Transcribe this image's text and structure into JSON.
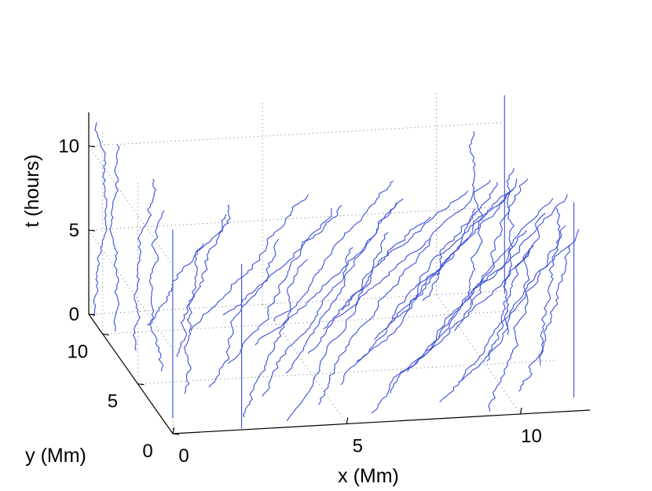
{
  "chart_data": {
    "type": "line3d",
    "title": "",
    "xlabel": "x (Mm)",
    "ylabel": "y (Mm)",
    "zlabel": "t (hours)",
    "xlim": [
      0,
      12
    ],
    "ylim": [
      0,
      12
    ],
    "zlim": [
      0,
      12
    ],
    "x_ticks": [
      "0",
      "5",
      "10"
    ],
    "y_ticks": [
      "0",
      "5",
      "10"
    ],
    "z_ticks": [
      "0",
      "5",
      "10"
    ],
    "grid": true,
    "line_color": "#3b4fd8",
    "description_note": "",
    "series": [
      {
        "start": [
          0.1,
          11.8
        ],
        "drift": [
          0.0,
          -0.01
        ],
        "length": 11.4
      },
      {
        "start": [
          0.4,
          10.2
        ],
        "drift": [
          0.01,
          -0.02
        ],
        "length": 11.1
      },
      {
        "start": [
          0.6,
          8.2
        ],
        "drift": [
          0.02,
          -0.03
        ],
        "length": 10.3
      },
      {
        "start": [
          0.9,
          6.1
        ],
        "drift": [
          0.0,
          -0.04
        ],
        "length": 10.0
      },
      {
        "start": [
          1.1,
          3.8
        ],
        "drift": [
          0.02,
          -0.05
        ],
        "length": 9.2
      },
      {
        "start": [
          0.3,
          1.5
        ],
        "drift": [
          0.0,
          0.0
        ],
        "length": 11.2
      },
      {
        "start": [
          1.4,
          10.6
        ],
        "drift": [
          0.1,
          -0.45
        ],
        "length": 9.6
      },
      {
        "start": [
          1.6,
          7.4
        ],
        "drift": [
          0.12,
          -0.3
        ],
        "length": 10.5
      },
      {
        "start": [
          1.9,
          4.3
        ],
        "drift": [
          0.15,
          -0.22
        ],
        "length": 9.8
      },
      {
        "start": [
          2.3,
          1.2
        ],
        "drift": [
          0.2,
          -0.05
        ],
        "length": 9.4
      },
      {
        "start": [
          2.5,
          9.8
        ],
        "drift": [
          0.25,
          -0.35
        ],
        "length": 10.1
      },
      {
        "start": [
          2.9,
          6.5
        ],
        "drift": [
          0.22,
          -0.28
        ],
        "length": 10.8
      },
      {
        "start": [
          3.2,
          3.1
        ],
        "drift": [
          0.18,
          -0.12
        ],
        "length": 9.5
      },
      {
        "start": [
          3.4,
          0.6
        ],
        "drift": [
          0.3,
          0.1
        ],
        "length": 10.4
      },
      {
        "start": [
          3.7,
          11.2
        ],
        "drift": [
          0.28,
          -0.5
        ],
        "length": 9.0
      },
      {
        "start": [
          4.0,
          8.1
        ],
        "drift": [
          0.32,
          -0.38
        ],
        "length": 10.7
      },
      {
        "start": [
          4.3,
          5.2
        ],
        "drift": [
          0.25,
          -0.2
        ],
        "length": 11.0
      },
      {
        "start": [
          4.6,
          2.0
        ],
        "drift": [
          0.35,
          -0.08
        ],
        "length": 9.9
      },
      {
        "start": [
          5.0,
          10.3
        ],
        "drift": [
          0.3,
          -0.42
        ],
        "length": 10.2
      },
      {
        "start": [
          5.3,
          7.0
        ],
        "drift": [
          0.27,
          -0.33
        ],
        "length": 9.7
      },
      {
        "start": [
          5.6,
          3.8
        ],
        "drift": [
          0.33,
          -0.18
        ],
        "length": 10.9
      },
      {
        "start": [
          5.9,
          0.9
        ],
        "drift": [
          0.4,
          0.05
        ],
        "length": 9.3
      },
      {
        "start": [
          6.2,
          9.3
        ],
        "drift": [
          0.36,
          -0.4
        ],
        "length": 10.6
      },
      {
        "start": [
          6.5,
          6.0
        ],
        "drift": [
          0.3,
          -0.25
        ],
        "length": 11.2
      },
      {
        "start": [
          6.8,
          2.7
        ],
        "drift": [
          0.38,
          -0.12
        ],
        "length": 10.0
      },
      {
        "start": [
          7.1,
          11.0
        ],
        "drift": [
          0.28,
          -0.48
        ],
        "length": 9.4
      },
      {
        "start": [
          7.4,
          8.0
        ],
        "drift": [
          0.34,
          -0.36
        ],
        "length": 10.8
      },
      {
        "start": [
          7.7,
          4.7
        ],
        "drift": [
          0.4,
          -0.22
        ],
        "length": 11.1
      },
      {
        "start": [
          8.0,
          1.6
        ],
        "drift": [
          0.42,
          -0.02
        ],
        "length": 9.8
      },
      {
        "start": [
          8.3,
          9.9
        ],
        "drift": [
          0.26,
          -0.4
        ],
        "length": 10.4
      },
      {
        "start": [
          8.6,
          6.6
        ],
        "drift": [
          0.3,
          -0.3
        ],
        "length": 10.9
      },
      {
        "start": [
          8.9,
          3.4
        ],
        "drift": [
          0.32,
          -0.15
        ],
        "length": 9.6
      },
      {
        "start": [
          9.2,
          0.4
        ],
        "drift": [
          0.2,
          0.08
        ],
        "length": 9.0
      },
      {
        "start": [
          9.5,
          11.5
        ],
        "drift": [
          0.12,
          -0.45
        ],
        "length": 9.7
      },
      {
        "start": [
          9.8,
          8.4
        ],
        "drift": [
          0.15,
          -0.3
        ],
        "length": 10.5
      },
      {
        "start": [
          10.1,
          5.3
        ],
        "drift": [
          0.1,
          -0.2
        ],
        "length": 10.1
      },
      {
        "start": [
          10.4,
          2.2
        ],
        "drift": [
          0.14,
          -0.05
        ],
        "length": 9.2
      },
      {
        "start": [
          10.8,
          10.8
        ],
        "drift": [
          0.02,
          -0.1
        ],
        "length": 10.9
      },
      {
        "start": [
          11.2,
          7.7
        ],
        "drift": [
          0.01,
          -0.05
        ],
        "length": 10.2
      },
      {
        "start": [
          11.5,
          4.6
        ],
        "drift": [
          0.0,
          -0.03
        ],
        "length": 9.6
      },
      {
        "start": [
          11.8,
          1.3
        ],
        "drift": [
          0.0,
          0.0
        ],
        "length": 11.6
      },
      {
        "start": [
          11.9,
          11.7
        ],
        "drift": [
          0.0,
          0.0
        ],
        "length": 11.8
      },
      {
        "start": [
          2.0,
          0.1
        ],
        "drift": [
          0.0,
          0.0
        ],
        "length": 9.8
      }
    ]
  }
}
